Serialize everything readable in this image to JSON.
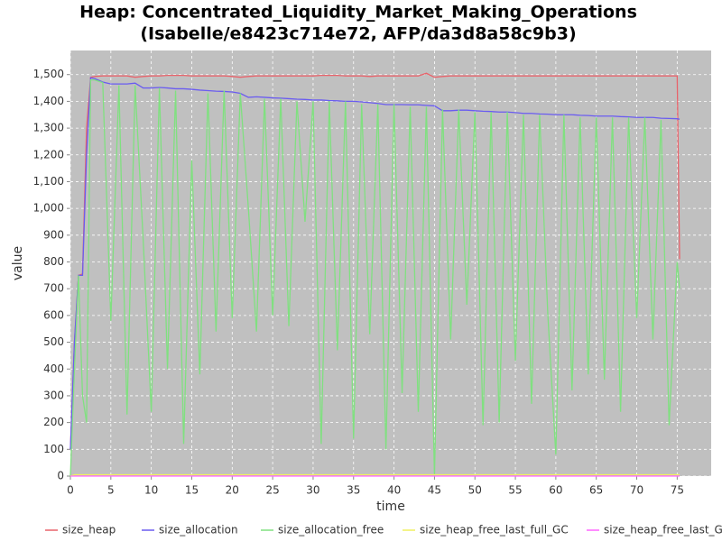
{
  "chart_data": {
    "type": "line",
    "title": "Heap: Concentrated_Liquidity_Market_Making_Operations",
    "subtitle": "(Isabelle/e8423c714e72, AFP/da3d8a58c9b3)",
    "x_label": "time",
    "y_label": "value",
    "xlim": [
      0,
      79.2
    ],
    "ylim": [
      0,
      1590
    ],
    "xticks": [
      0,
      5,
      10,
      15,
      20,
      25,
      30,
      35,
      40,
      45,
      50,
      55,
      60,
      65,
      70,
      75
    ],
    "yticks": [
      0,
      100,
      200,
      300,
      400,
      500,
      600,
      700,
      800,
      900,
      {
        "value": 1000,
        "label": "1,000"
      },
      {
        "value": 1100,
        "label": "1,100"
      },
      {
        "value": 1200,
        "label": "1,200"
      },
      {
        "value": 1300,
        "label": "1,300"
      },
      {
        "value": 1400,
        "label": "1,400"
      },
      {
        "value": 1500,
        "label": "1,500"
      }
    ],
    "grid": true,
    "legend": "bottom",
    "x": [
      0,
      0.5,
      1,
      1.5,
      2,
      2.5,
      3,
      4,
      5,
      6,
      7,
      8,
      9,
      10,
      11,
      12,
      13,
      14,
      15,
      16,
      17,
      18,
      19,
      20,
      21,
      22,
      23,
      24,
      25,
      26,
      27,
      28,
      29,
      30,
      31,
      32,
      33,
      34,
      35,
      36,
      37,
      38,
      39,
      40,
      41,
      42,
      43,
      44,
      45,
      46,
      47,
      48,
      49,
      50,
      51,
      52,
      53,
      54,
      55,
      56,
      57,
      58,
      59,
      60,
      61,
      62,
      63,
      64,
      65,
      66,
      67,
      68,
      69,
      70,
      71,
      72,
      73,
      74,
      75,
      75.3
    ],
    "series": [
      {
        "name": "size_heap",
        "color": "#e8636b",
        "values": [
          100,
          500,
          750,
          755,
          1300,
          1490,
          1493,
          1495,
          1495,
          1495,
          1495,
          1490,
          1493,
          1495,
          1495,
          1497,
          1497,
          1497,
          1495,
          1495,
          1495,
          1495,
          1495,
          1493,
          1490,
          1493,
          1495,
          1495,
          1495,
          1495,
          1495,
          1495,
          1495,
          1495,
          1497,
          1497,
          1497,
          1495,
          1495,
          1495,
          1493,
          1495,
          1495,
          1495,
          1495,
          1495,
          1495,
          1505,
          1490,
          1493,
          1495,
          1495,
          1495,
          1495,
          1495,
          1495,
          1495,
          1495,
          1495,
          1495,
          1495,
          1495,
          1495,
          1495,
          1495,
          1495,
          1495,
          1495,
          1495,
          1495,
          1495,
          1495,
          1495,
          1495,
          1495,
          1495,
          1495,
          1495,
          1495,
          810
        ]
      },
      {
        "name": "size_allocation",
        "color": "#6a5cf0",
        "values": [
          100,
          500,
          750,
          750,
          1200,
          1488,
          1485,
          1472,
          1465,
          1465,
          1465,
          1468,
          1450,
          1450,
          1452,
          1450,
          1447,
          1447,
          1445,
          1442,
          1440,
          1438,
          1437,
          1435,
          1430,
          1415,
          1417,
          1415,
          1413,
          1412,
          1410,
          1408,
          1407,
          1405,
          1405,
          1403,
          1402,
          1400,
          1400,
          1398,
          1395,
          1392,
          1388,
          1388,
          1388,
          1387,
          1387,
          1385,
          1383,
          1365,
          1365,
          1367,
          1367,
          1365,
          1363,
          1362,
          1360,
          1360,
          1358,
          1355,
          1355,
          1353,
          1352,
          1350,
          1350,
          1350,
          1348,
          1347,
          1345,
          1345,
          1345,
          1343,
          1342,
          1340,
          1340,
          1340,
          1337,
          1336,
          1335,
          1333
        ]
      },
      {
        "name": "size_allocation_free",
        "color": "#80e080",
        "values": [
          0,
          400,
          750,
          300,
          200,
          1480,
          1480,
          1470,
          580,
          1460,
          230,
          1460,
          880,
          240,
          1450,
          400,
          1440,
          120,
          1180,
          380,
          1430,
          540,
          1440,
          590,
          1430,
          1000,
          540,
          1410,
          600,
          1410,
          560,
          1400,
          950,
          1400,
          120,
          1400,
          470,
          1400,
          140,
          1390,
          530,
          1390,
          100,
          1390,
          310,
          1380,
          240,
          1380,
          0,
          1370,
          510,
          1370,
          640,
          1360,
          190,
          1360,
          200,
          1360,
          430,
          1350,
          270,
          1350,
          610,
          80,
          1350,
          320,
          1340,
          380,
          1340,
          360,
          1340,
          240,
          1340,
          590,
          1340,
          510,
          1330,
          190,
          800,
          700
        ]
      },
      {
        "name": "size_heap_free_last_full_GC",
        "color": "#f0f060",
        "values": [
          0,
          5,
          5,
          5,
          5,
          5,
          5,
          5,
          5,
          5,
          5,
          5,
          5,
          5,
          5,
          5,
          5,
          5,
          5,
          5,
          5,
          5,
          5,
          5,
          5,
          5,
          5,
          5,
          5,
          5,
          5,
          5,
          5,
          5,
          5,
          5,
          5,
          5,
          5,
          5,
          5,
          5,
          5,
          5,
          5,
          5,
          5,
          5,
          5,
          5,
          5,
          5,
          5,
          5,
          5,
          5,
          5,
          5,
          5,
          5,
          5,
          5,
          5,
          5,
          5,
          5,
          5,
          5,
          5,
          5,
          5,
          5,
          5,
          5,
          5,
          5,
          5,
          5,
          5,
          5
        ]
      },
      {
        "name": "size_heap_free_last_GC",
        "color": "#ff66ff",
        "values": [
          0,
          0,
          0,
          0,
          0,
          0,
          0,
          0,
          0,
          0,
          0,
          0,
          0,
          0,
          0,
          0,
          0,
          0,
          0,
          0,
          0,
          0,
          0,
          0,
          0,
          0,
          0,
          0,
          0,
          0,
          0,
          0,
          0,
          0,
          0,
          0,
          0,
          0,
          0,
          0,
          0,
          0,
          0,
          0,
          0,
          0,
          0,
          0,
          0,
          0,
          0,
          0,
          0,
          0,
          0,
          0,
          0,
          0,
          0,
          0,
          0,
          0,
          0,
          0,
          0,
          0,
          0,
          0,
          0,
          0,
          0,
          0,
          0,
          0,
          0,
          0,
          0,
          0,
          0,
          0
        ]
      }
    ]
  }
}
